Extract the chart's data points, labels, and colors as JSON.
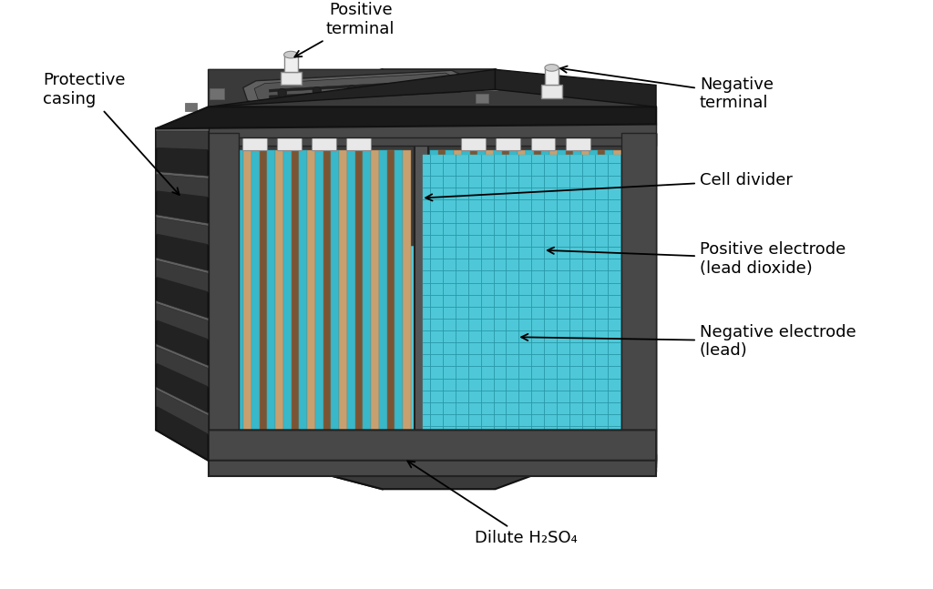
{
  "background_color": "#ffffff",
  "labels": {
    "protective_casing": "Protective\ncasing",
    "positive_terminal": "Positive\nterminal",
    "negative_terminal": "Negative\nterminal",
    "cell_divider": "Cell divider",
    "positive_electrode": "Positive electrode\n(lead dioxide)",
    "negative_electrode": "Negative electrode\n(lead)",
    "dilute_h2so4": "Dilute H₂SO₄"
  },
  "colors": {
    "black": "#111111",
    "dark1": "#1a1a1a",
    "dark2": "#222222",
    "dark3": "#2d2d2d",
    "gray1": "#3a3a3a",
    "gray2": "#484848",
    "gray3": "#555555",
    "gray4": "#606060",
    "gray5": "#707070",
    "gray6": "#888888",
    "gray7": "#aaaaaa",
    "gray8": "#bbbbbb",
    "light_gray": "#cccccc",
    "white_gray": "#dddddd",
    "white1": "#e8e8e8",
    "white2": "#f0f0f0",
    "cyan1": "#4ec8d8",
    "cyan2": "#38b8c8",
    "cyan3": "#28a8b8",
    "cyan_light": "#70d8e8",
    "cyan_grid": "#2898a8",
    "brown1": "#7a5535",
    "brown2": "#9a7050",
    "tan1": "#c8a070",
    "tan2": "#b89060",
    "cream": "#e8d0a8",
    "inner_bg": "#3a3a3a",
    "bottom_dark": "#404040"
  },
  "font_size": 13
}
